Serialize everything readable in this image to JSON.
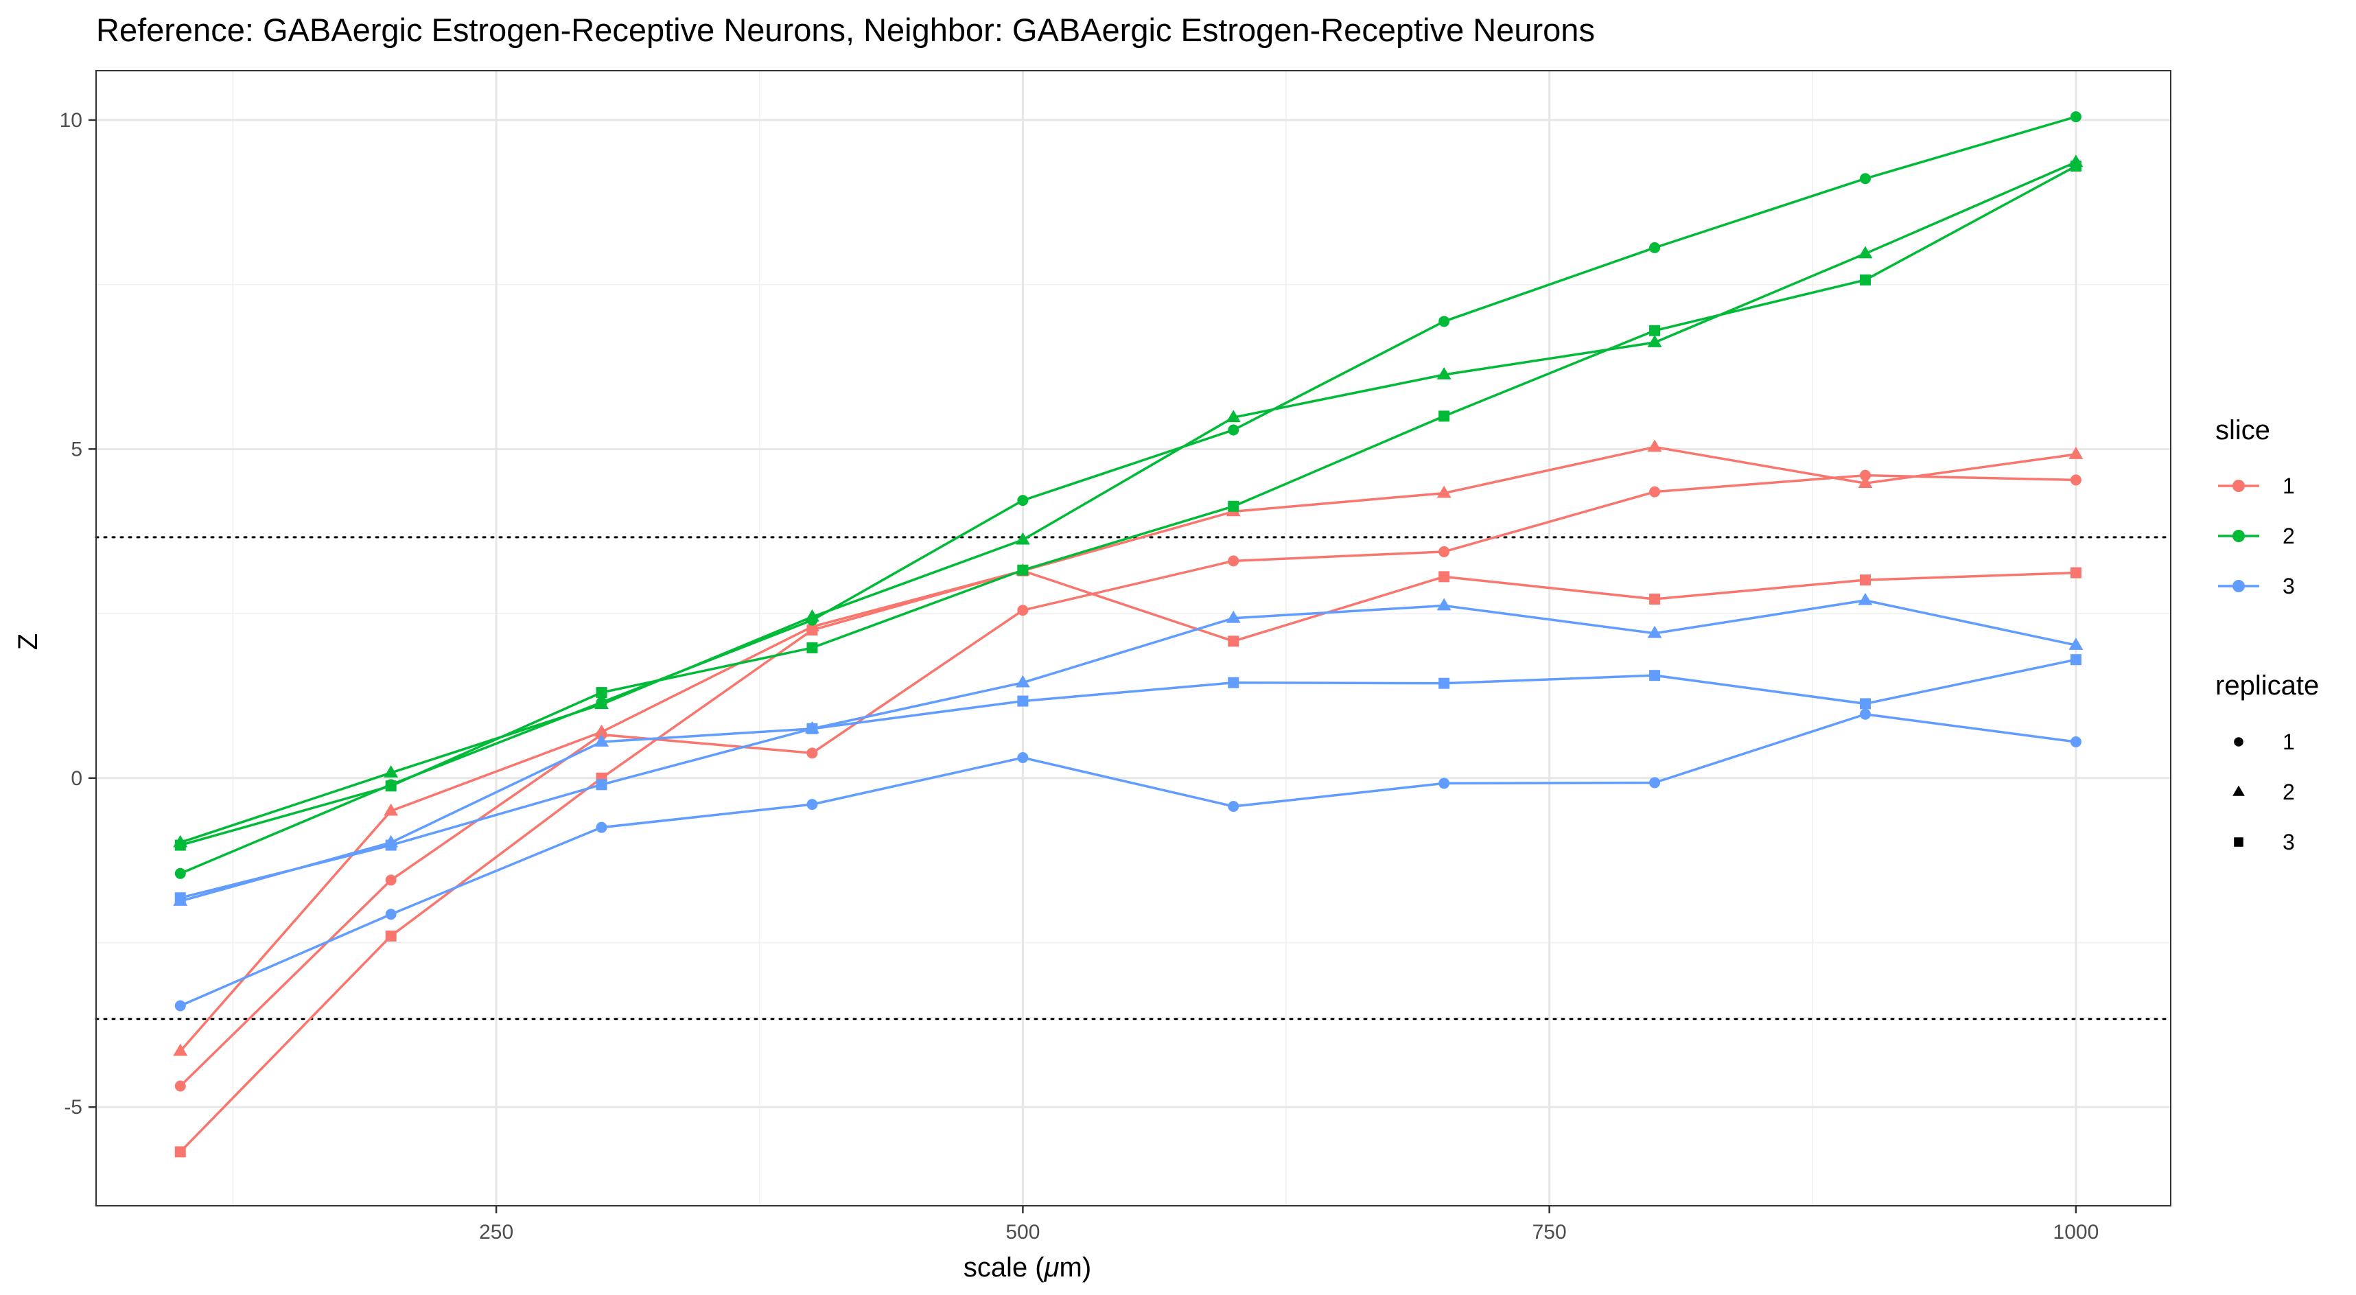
{
  "chart_data": {
    "type": "line",
    "title": "Reference: GABAergic Estrogen-Receptive Neurons, Neighbor: GABAergic Estrogen-Receptive Neurons",
    "xlabel_prefix": "scale (",
    "xlabel_symbol": "μ",
    "xlabel_suffix": "m)",
    "ylabel": "Z",
    "xlim": [
      60,
      1045
    ],
    "ylim": [
      -6.5,
      10.75
    ],
    "x_ticks": [
      250,
      500,
      750,
      1000
    ],
    "x_tick_labels": [
      "250",
      "500",
      "750",
      "1000"
    ],
    "y_ticks": [
      -5,
      0,
      5,
      10
    ],
    "y_tick_labels": [
      "-5",
      "0",
      "5",
      "10"
    ],
    "grid": true,
    "reference_lines": [
      3.66,
      -3.66
    ],
    "legend": {
      "placement": "right",
      "color_title": "slice",
      "color_entries": [
        {
          "label": "1",
          "color": "#F8766D"
        },
        {
          "label": "2",
          "color": "#00BA38"
        },
        {
          "label": "3",
          "color": "#619CFF"
        }
      ],
      "shape_title": "replicate",
      "shape_entries": [
        {
          "label": "1",
          "shape": "circle"
        },
        {
          "label": "2",
          "shape": "triangle"
        },
        {
          "label": "3",
          "shape": "square"
        }
      ]
    },
    "x": [
      100,
      200,
      300,
      400,
      500,
      600,
      700,
      800,
      900,
      1000
    ],
    "series": [
      {
        "slice": "1",
        "replicate": "1",
        "color": "#F8766D",
        "shape": "circle",
        "values": [
          -4.68,
          -1.55,
          0.66,
          0.38,
          2.55,
          3.3,
          3.44,
          4.35,
          4.6,
          4.53
        ]
      },
      {
        "slice": "1",
        "replicate": "2",
        "color": "#F8766D",
        "shape": "triangle",
        "values": [
          -4.15,
          -0.5,
          0.7,
          2.3,
          3.15,
          4.05,
          4.33,
          5.03,
          4.48,
          4.92
        ]
      },
      {
        "slice": "1",
        "replicate": "3",
        "color": "#F8766D",
        "shape": "square",
        "values": [
          -5.68,
          -2.4,
          0.0,
          2.25,
          3.15,
          2.08,
          3.06,
          2.72,
          3.01,
          3.12
        ]
      },
      {
        "slice": "2",
        "replicate": "1",
        "color": "#00BA38",
        "shape": "circle",
        "values": [
          -1.45,
          -0.1,
          1.15,
          2.4,
          4.22,
          5.29,
          6.94,
          8.06,
          9.11,
          10.05
        ]
      },
      {
        "slice": "2",
        "replicate": "2",
        "color": "#00BA38",
        "shape": "triangle",
        "values": [
          -0.98,
          0.08,
          1.12,
          2.45,
          3.62,
          5.48,
          6.13,
          6.62,
          7.97,
          9.36
        ]
      },
      {
        "slice": "2",
        "replicate": "3",
        "color": "#00BA38",
        "shape": "square",
        "values": [
          -1.02,
          -0.12,
          1.3,
          1.98,
          3.16,
          4.13,
          5.5,
          6.8,
          7.57,
          9.3
        ]
      },
      {
        "slice": "3",
        "replicate": "1",
        "color": "#619CFF",
        "shape": "circle",
        "values": [
          -3.46,
          -2.07,
          -0.75,
          -0.4,
          0.31,
          -0.43,
          -0.08,
          -0.07,
          0.97,
          0.55
        ]
      },
      {
        "slice": "3",
        "replicate": "2",
        "color": "#619CFF",
        "shape": "triangle",
        "values": [
          -1.87,
          -0.98,
          0.55,
          0.75,
          1.45,
          2.43,
          2.62,
          2.2,
          2.7,
          2.02
        ]
      },
      {
        "slice": "3",
        "replicate": "3",
        "color": "#619CFF",
        "shape": "square",
        "values": [
          -1.82,
          -1.02,
          -0.1,
          0.75,
          1.17,
          1.45,
          1.44,
          1.56,
          1.13,
          1.8
        ]
      }
    ]
  }
}
